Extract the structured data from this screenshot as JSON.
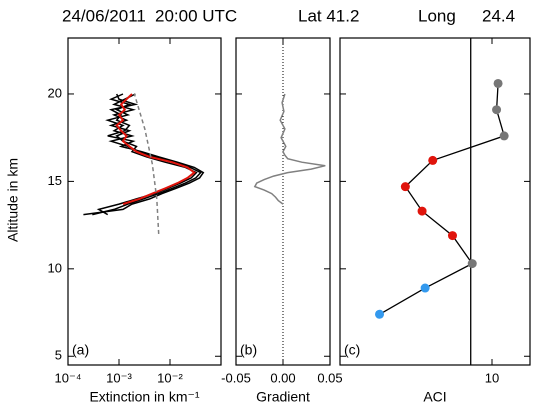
{
  "title_parts": [
    "24/06/2011",
    "20:00 UTC",
    "Lat 41.2",
    "Long",
    "24.4"
  ],
  "ylabel": "Altitude in km",
  "ylim": [
    4.5,
    23.2
  ],
  "yticks": [
    5,
    10,
    15,
    20
  ],
  "chart_data": [
    {
      "type": "line",
      "panel_label": "(a)",
      "xlabel": "Extinction in km⁻¹",
      "xscale": "log",
      "xlim": [
        0.0001,
        0.1
      ],
      "xticks": [
        {
          "value": 0.0001,
          "label": "10⁻⁴"
        },
        {
          "value": 0.001,
          "label": "10⁻³"
        },
        {
          "value": 0.01,
          "label": "10⁻²"
        }
      ],
      "series": [
        {
          "color": "#000000",
          "dash": false,
          "altitude": [
            13.1,
            13.4,
            13.7,
            14.0,
            14.3,
            14.6,
            14.9,
            15.2,
            15.5,
            15.8,
            16.1,
            16.4,
            16.7,
            17.0,
            17.3,
            17.6,
            17.9,
            18.2,
            18.5,
            18.8,
            19.1,
            19.4,
            19.7,
            20.0
          ],
          "values": [
            0.0003,
            0.0008,
            0.0015,
            0.003,
            0.006,
            0.011,
            0.02,
            0.032,
            0.04,
            0.025,
            0.012,
            0.005,
            0.0025,
            0.0015,
            0.0007,
            0.0018,
            0.0008,
            0.0012,
            0.0006,
            0.0015,
            0.0009,
            0.0016,
            0.0007,
            0.0012
          ]
        },
        {
          "color": "#000000",
          "dash": false,
          "altitude": [
            13.1,
            13.4,
            13.7,
            14.0,
            14.3,
            14.6,
            14.9,
            15.2,
            15.5,
            15.8,
            16.1,
            16.4,
            16.7,
            17.0,
            17.3,
            17.6,
            17.9,
            18.2,
            18.5,
            18.8,
            19.1,
            19.4,
            19.7,
            20.0
          ],
          "values": [
            0.0006,
            0.0004,
            0.001,
            0.0022,
            0.005,
            0.009,
            0.016,
            0.026,
            0.033,
            0.02,
            0.008,
            0.0035,
            0.0018,
            0.0022,
            0.0012,
            0.0009,
            0.0016,
            0.0007,
            0.0014,
            0.0008,
            0.0019,
            0.0008,
            0.0013,
            0.0021
          ]
        },
        {
          "color": "#000000",
          "dash": false,
          "altitude": [
            13.1,
            13.4,
            13.7,
            14.0,
            14.3,
            14.6,
            14.9,
            15.2,
            15.5,
            15.8,
            16.1,
            16.4,
            16.7,
            17.0,
            17.3,
            17.6,
            17.9,
            18.2,
            18.5,
            18.8,
            19.1,
            19.4,
            19.7,
            20.0
          ],
          "values": [
            0.0002,
            0.0012,
            0.0018,
            0.004,
            0.007,
            0.013,
            0.024,
            0.038,
            0.045,
            0.03,
            0.014,
            0.006,
            0.0028,
            0.0011,
            0.0019,
            0.0006,
            0.0013,
            0.0016,
            0.0009,
            0.0011,
            0.0007,
            0.0021,
            0.001,
            0.0009
          ]
        },
        {
          "color": "#e0140c",
          "dash": false,
          "altitude": [
            13.7,
            14.0,
            14.3,
            14.6,
            14.9,
            15.2,
            15.5,
            15.8,
            16.1,
            16.4,
            16.7,
            17.0,
            17.3,
            17.6,
            17.9,
            18.2,
            18.5,
            18.8,
            19.1,
            19.4,
            19.7,
            20.0
          ],
          "values": [
            0.0012,
            0.0025,
            0.0045,
            0.008,
            0.014,
            0.022,
            0.03,
            0.022,
            0.011,
            0.004,
            0.0022,
            0.0016,
            0.0012,
            0.0014,
            0.0011,
            0.0009,
            0.0012,
            0.001,
            0.0013,
            0.0011,
            0.0014,
            0.0018
          ]
        },
        {
          "color": "#808080",
          "dash": true,
          "altitude": [
            12,
            14,
            16,
            18,
            20
          ],
          "values": [
            0.006,
            0.0055,
            0.0045,
            0.0032,
            0.002
          ]
        }
      ]
    },
    {
      "type": "line",
      "panel_label": "(b)",
      "xlabel": "Gradient",
      "xscale": "linear",
      "xlim": [
        -0.05,
        0.05
      ],
      "xticks": [
        {
          "value": -0.05,
          "label": "-0.05"
        },
        {
          "value": 0,
          "label": "0.00"
        },
        {
          "value": 0.05,
          "label": "0.05"
        }
      ],
      "zero_line": 0,
      "series": [
        {
          "color": "#808080",
          "dash": false,
          "altitude": [
            13.7,
            13.9,
            14.1,
            14.3,
            14.5,
            14.7,
            14.9,
            15.1,
            15.3,
            15.5,
            15.7,
            15.9,
            16.1,
            16.3,
            16.5,
            16.7,
            17.0,
            17.5,
            18.0,
            18.5,
            19.0,
            19.5,
            20.0
          ],
          "values": [
            0.0,
            -0.005,
            -0.008,
            -0.012,
            -0.02,
            -0.03,
            -0.028,
            -0.02,
            -0.01,
            0.005,
            0.03,
            0.045,
            0.02,
            0.005,
            0.002,
            0.0,
            0.003,
            -0.002,
            0.002,
            -0.003,
            0.001,
            -0.001,
            0.002
          ]
        }
      ]
    },
    {
      "type": "scatter",
      "panel_label": "(c)",
      "xlabel": "ACI",
      "xscale": "linear",
      "xlim": [
        0,
        12.5
      ],
      "xticks": [
        10
      ],
      "vline": 8.6,
      "line_color": "#000000",
      "altitude": [
        7.4,
        8.9,
        10.3,
        11.9,
        13.3,
        14.7,
        16.2,
        17.6,
        19.1,
        20.6
      ],
      "values": [
        2.6,
        5.6,
        8.7,
        7.4,
        5.4,
        4.3,
        6.1,
        10.8,
        10.3,
        10.4
      ],
      "colors": [
        "#3399ee",
        "#3399ee",
        "#777777",
        "#e0140c",
        "#e0140c",
        "#e0140c",
        "#e0140c",
        "#777777",
        "#777777",
        "#777777"
      ]
    }
  ]
}
